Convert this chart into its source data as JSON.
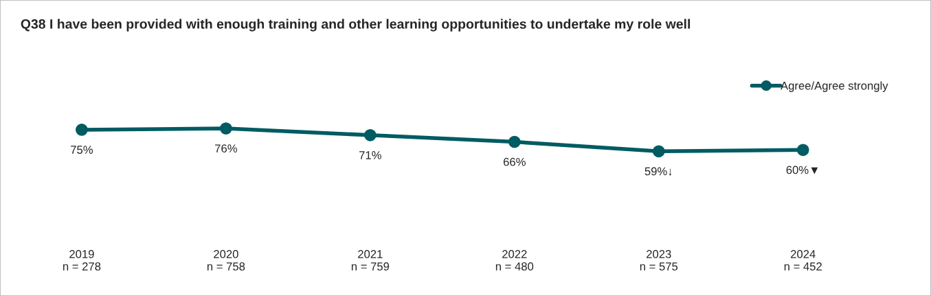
{
  "chart_data": {
    "type": "line",
    "title": "Q38 I have been provided with enough training and other learning opportunities to undertake my role well",
    "categories": [
      "2019\nn = 278",
      "2020\nn = 758",
      "2021\nn = 759",
      "2022\nn = 480",
      "2023\nn = 575",
      "2024\nn = 452"
    ],
    "series": [
      {
        "name": "Agree/Agree strongly",
        "color": "#005b63",
        "values": [
          75,
          76,
          71,
          66,
          59,
          60
        ],
        "value_labels": [
          "75%",
          "76%",
          "71%",
          "66%",
          "59%↓",
          "60%▼"
        ]
      }
    ],
    "tick_labels": "x",
    "marker": "circle",
    "legend": "top right",
    "grid": false
  }
}
